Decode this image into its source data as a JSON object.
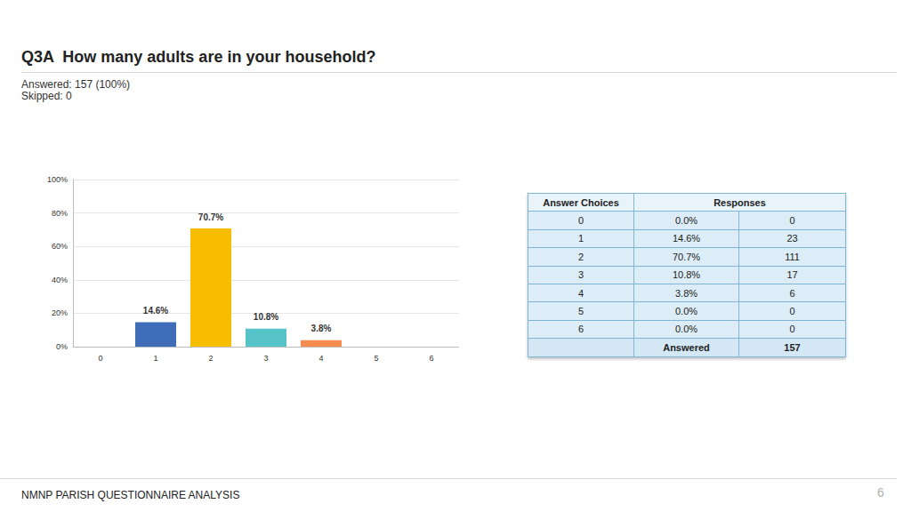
{
  "header": {
    "title": "Q3A  How many adults are in your household?",
    "answered": "Answered: 157 (100%)",
    "skipped": "Skipped: 0"
  },
  "chart_data": {
    "type": "bar",
    "categories": [
      "0",
      "1",
      "2",
      "3",
      "4",
      "5",
      "6"
    ],
    "values": [
      0,
      14.6,
      70.7,
      10.8,
      3.8,
      0,
      0
    ],
    "value_labels": [
      null,
      "14.6%",
      "70.7%",
      "10.8%",
      "3.8%",
      null,
      null
    ],
    "colors": [
      "#5b7fc4",
      "#3f6db8",
      "#f8bd00",
      "#56c3c9",
      "#f58b4f",
      "#a9a9a9",
      "#8e6fb5"
    ],
    "ylim": [
      0,
      100
    ],
    "yticks": [
      {
        "value": 0,
        "label": "0%"
      },
      {
        "value": 20,
        "label": "20%"
      },
      {
        "value": 40,
        "label": "40%"
      },
      {
        "value": 60,
        "label": "60%"
      },
      {
        "value": 80,
        "label": "80%"
      },
      {
        "value": 100,
        "label": "100%"
      }
    ],
    "grid": true,
    "data_labels": true
  },
  "table": {
    "header": [
      "Answer Choices",
      "Responses"
    ],
    "rows": [
      [
        "0",
        "0.0%",
        "0"
      ],
      [
        "1",
        "14.6%",
        "23"
      ],
      [
        "2",
        "70.7%",
        "111"
      ],
      [
        "3",
        "10.8%",
        "17"
      ],
      [
        "4",
        "3.8%",
        "6"
      ],
      [
        "5",
        "0.0%",
        "0"
      ],
      [
        "6",
        "0.0%",
        "0"
      ]
    ],
    "total": [
      "",
      "Answered",
      "157"
    ]
  },
  "footer": {
    "text": "NMNP PARISH QUESTIONNAIRE ANALYSIS",
    "page": "6"
  }
}
